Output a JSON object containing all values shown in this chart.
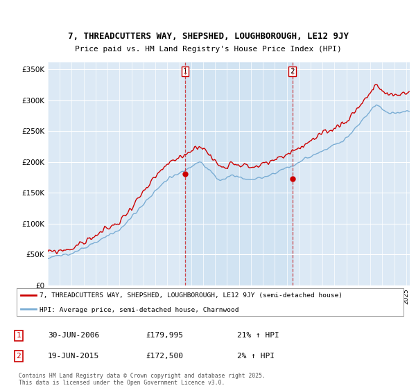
{
  "title1": "7, THREADCUTTERS WAY, SHEPSHED, LOUGHBOROUGH, LE12 9JY",
  "title2": "Price paid vs. HM Land Registry's House Price Index (HPI)",
  "bg_color": "#dce9f5",
  "shade_color": "#c5dcf0",
  "red_color": "#cc0000",
  "blue_color": "#7aadd4",
  "yticks": [
    0,
    50000,
    100000,
    150000,
    200000,
    250000,
    300000,
    350000
  ],
  "ytick_labels": [
    "£0",
    "£50K",
    "£100K",
    "£150K",
    "£200K",
    "£250K",
    "£300K",
    "£350K"
  ],
  "xmin": 1995.25,
  "xmax": 2025.3,
  "ymin": 0,
  "ymax": 362000,
  "purchase1_x": 2006.5,
  "purchase1_y": 179995,
  "purchase2_x": 2015.47,
  "purchase2_y": 172500,
  "label_row1": [
    "1",
    "30-JUN-2006",
    "£179,995",
    "21% ↑ HPI"
  ],
  "label_row2": [
    "2",
    "19-JUN-2015",
    "£172,500",
    "2% ↑ HPI"
  ],
  "legend_line1": "7, THREADCUTTERS WAY, SHEPSHED, LOUGHBOROUGH, LE12 9JY (semi-detached house)",
  "legend_line2": "HPI: Average price, semi-detached house, Charnwood",
  "footer": "Contains HM Land Registry data © Crown copyright and database right 2025.\nThis data is licensed under the Open Government Licence v3.0."
}
